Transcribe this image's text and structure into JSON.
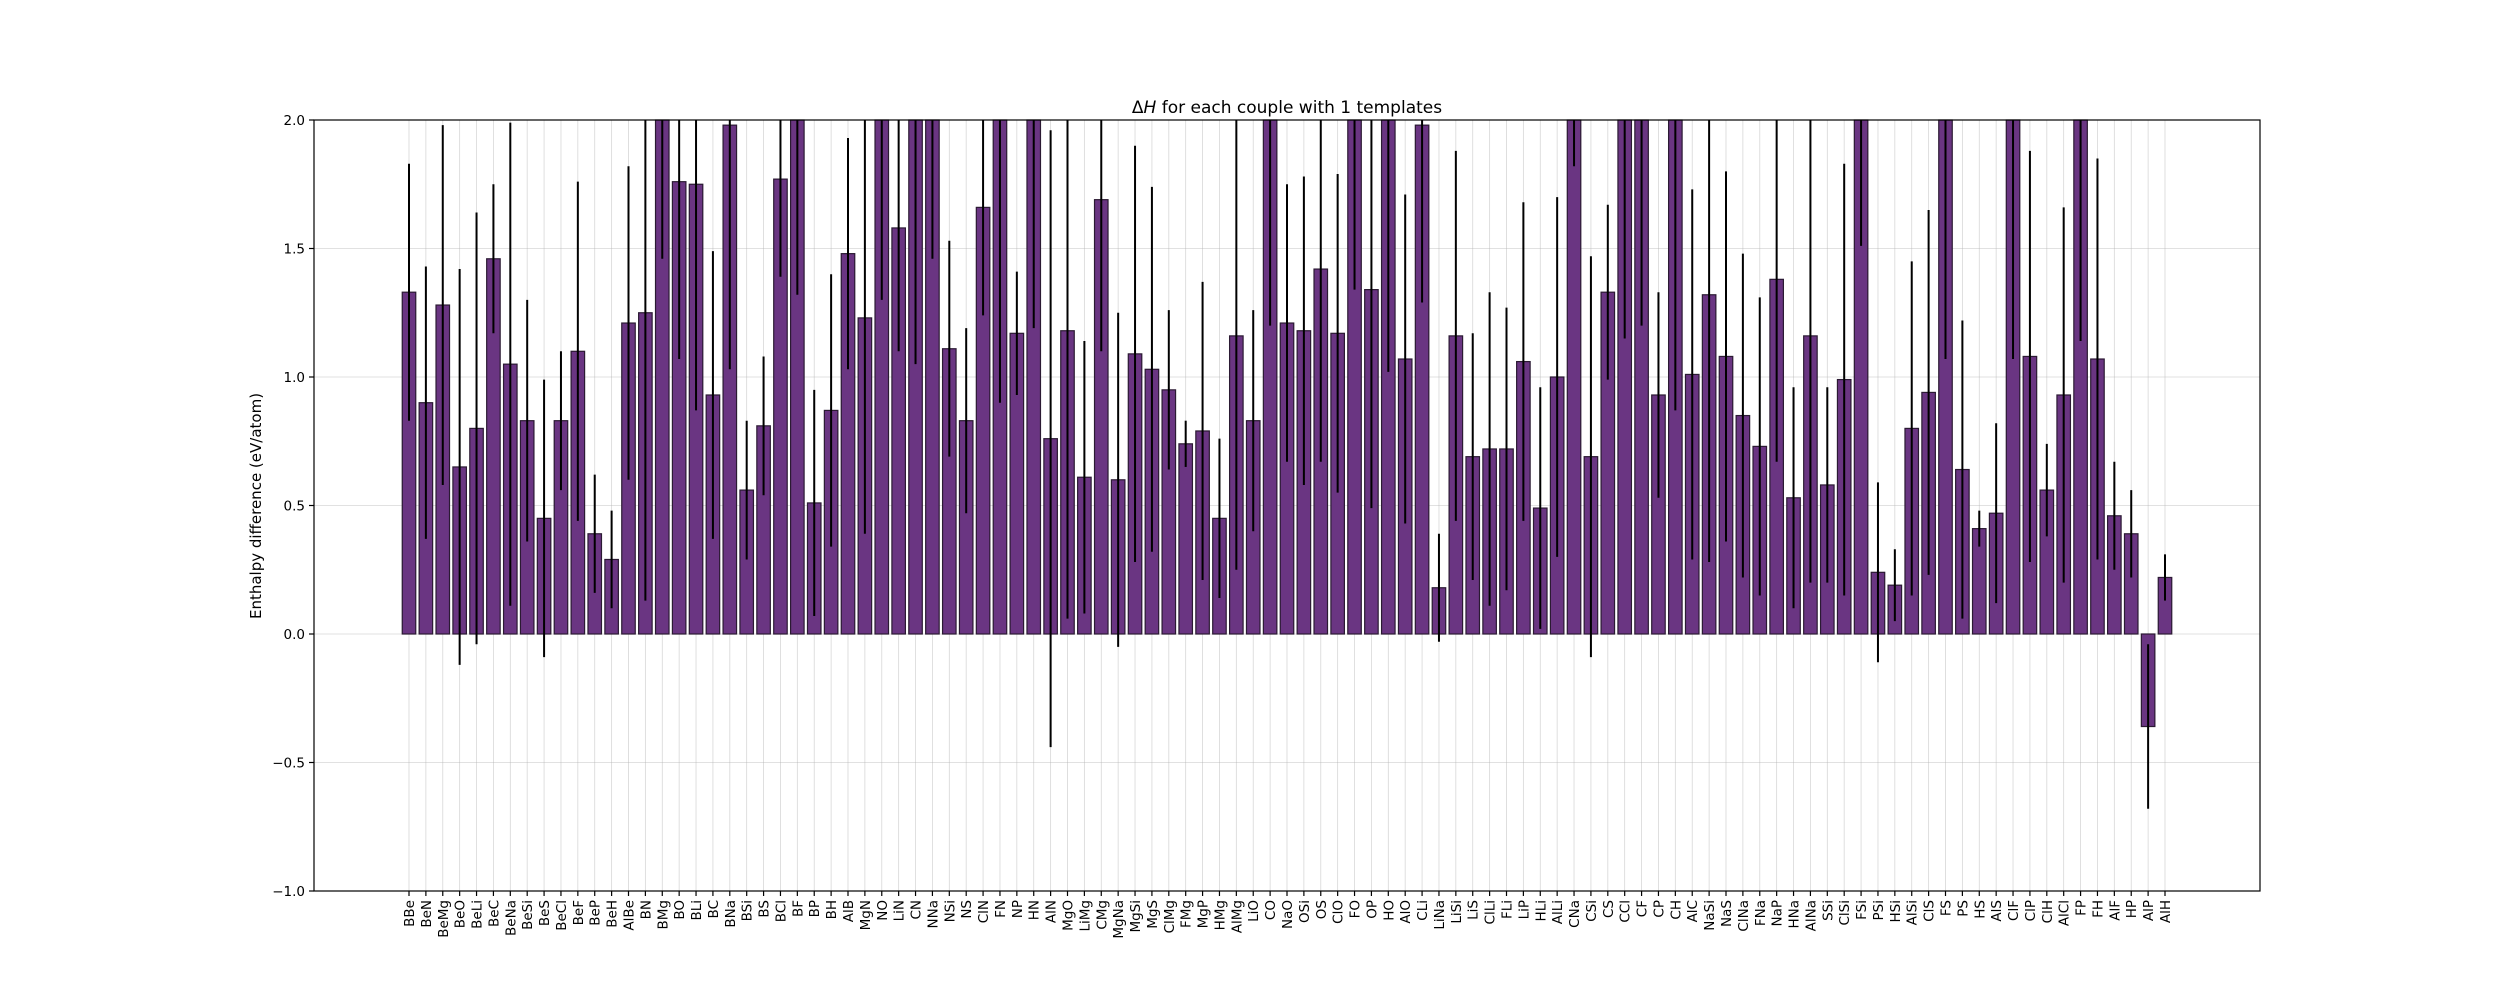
{
  "chart_data": {
    "type": "bar",
    "title": "ΔH for each couple with 1 templates",
    "title_parts": [
      "Δ",
      "H",
      " for each couple with 1 templates"
    ],
    "xlabel": "",
    "ylabel": "Enthalpy difference (eV/atom)",
    "ylim": [
      -1.0,
      2.0
    ],
    "yticks": [
      -1.0,
      -0.5,
      0.0,
      0.5,
      1.0,
      1.5,
      2.0
    ],
    "ytick_labels": [
      "−1.0",
      "−0.5",
      "0.0",
      "0.5",
      "1.0",
      "1.5",
      "2.0"
    ],
    "grid": true,
    "bar_color": "#6a3582",
    "categories": [
      "BBe",
      "BeN",
      "BeMg",
      "BeO",
      "BeLi",
      "BeC",
      "BeNa",
      "BeSi",
      "BeS",
      "BeCl",
      "BeF",
      "BeP",
      "BeH",
      "AlBe",
      "BN",
      "BMg",
      "BO",
      "BLi",
      "BC",
      "BNa",
      "BSi",
      "BS",
      "BCl",
      "BF",
      "BP",
      "BH",
      "AlB",
      "MgN",
      "NO",
      "LiN",
      "CN",
      "NNa",
      "NSi",
      "NS",
      "ClN",
      "FN",
      "NP",
      "HN",
      "AlN",
      "MgO",
      "LiMg",
      "CMg",
      "MgNa",
      "MgSi",
      "MgS",
      "ClMg",
      "FMg",
      "MgP",
      "HMg",
      "AlMg",
      "LiO",
      "CO",
      "NaO",
      "OSi",
      "OS",
      "ClO",
      "FO",
      "OP",
      "HO",
      "AlO",
      "CLi",
      "LiNa",
      "LiSi",
      "LiS",
      "ClLi",
      "FLi",
      "LiP",
      "HLi",
      "AlLi",
      "CNa",
      "CSi",
      "CS",
      "CCl",
      "CF",
      "CP",
      "CH",
      "AlC",
      "NaSi",
      "NaS",
      "ClNa",
      "FNa",
      "NaP",
      "HNa",
      "AlNa",
      "SSi",
      "ClSi",
      "FSi",
      "PSi",
      "HSi",
      "AlSi",
      "ClS",
      "FS",
      "PS",
      "HS",
      "AlS",
      "ClF",
      "ClP",
      "ClH",
      "AlCl",
      "FP",
      "FH",
      "AlF",
      "HP",
      "AlP",
      "AlH"
    ],
    "values": [
      1.33,
      0.9,
      1.28,
      0.65,
      0.8,
      1.46,
      1.05,
      0.83,
      0.45,
      0.83,
      1.1,
      0.39,
      0.29,
      1.21,
      1.25,
      2.0,
      1.76,
      1.75,
      0.93,
      1.98,
      0.56,
      0.81,
      1.77,
      2.0,
      0.51,
      0.87,
      1.48,
      1.23,
      2.0,
      1.58,
      2.0,
      2.0,
      1.11,
      0.83,
      1.66,
      2.0,
      1.17,
      2.0,
      0.76,
      1.18,
      0.61,
      1.69,
      0.6,
      1.09,
      1.03,
      0.95,
      0.74,
      0.79,
      0.45,
      1.16,
      0.83,
      2.0,
      1.21,
      1.18,
      1.42,
      1.17,
      2.0,
      1.34,
      2.0,
      1.07,
      1.98,
      0.18,
      1.16,
      0.69,
      0.72,
      0.72,
      1.06,
      0.49,
      1.0,
      2.0,
      0.69,
      1.33,
      2.0,
      2.0,
      0.93,
      2.0,
      1.01,
      1.32,
      1.08,
      0.85,
      0.73,
      1.38,
      0.53,
      1.16,
      0.58,
      0.99,
      2.0,
      0.24,
      0.19,
      0.8,
      0.94,
      2.0,
      0.64,
      0.41,
      0.47,
      2.0,
      1.08,
      0.56,
      0.93,
      2.0,
      1.07,
      0.46,
      0.39,
      -0.36,
      0.22
    ],
    "errors": [
      0.5,
      0.53,
      0.7,
      0.77,
      0.84,
      0.29,
      0.94,
      0.47,
      0.54,
      0.27,
      0.66,
      0.23,
      0.19,
      0.61,
      1.12,
      0.54,
      0.69,
      0.88,
      0.56,
      0.95,
      0.27,
      0.27,
      0.38,
      0.68,
      0.44,
      0.53,
      0.45,
      0.84,
      0.7,
      0.48,
      0.95,
      0.54,
      0.42,
      0.36,
      0.42,
      1.1,
      0.24,
      0.81,
      1.2,
      1.12,
      0.53,
      0.59,
      0.65,
      0.81,
      0.71,
      0.31,
      0.09,
      0.58,
      0.31,
      0.91,
      0.43,
      0.8,
      0.54,
      0.6,
      0.75,
      0.62,
      0.66,
      0.85,
      0.98,
      0.64,
      0.69,
      0.21,
      0.72,
      0.48,
      0.61,
      0.55,
      0.62,
      0.47,
      0.7,
      0.18,
      0.78,
      0.34,
      0.85,
      0.8,
      0.4,
      1.13,
      0.72,
      1.04,
      0.72,
      0.63,
      0.58,
      0.71,
      0.43,
      0.96,
      0.38,
      0.84,
      0.49,
      0.35,
      0.14,
      0.65,
      0.71,
      0.93,
      0.58,
      0.07,
      0.35,
      0.93,
      0.8,
      0.18,
      0.73,
      0.86,
      0.78,
      0.21,
      0.17,
      0.32,
      0.09
    ]
  }
}
